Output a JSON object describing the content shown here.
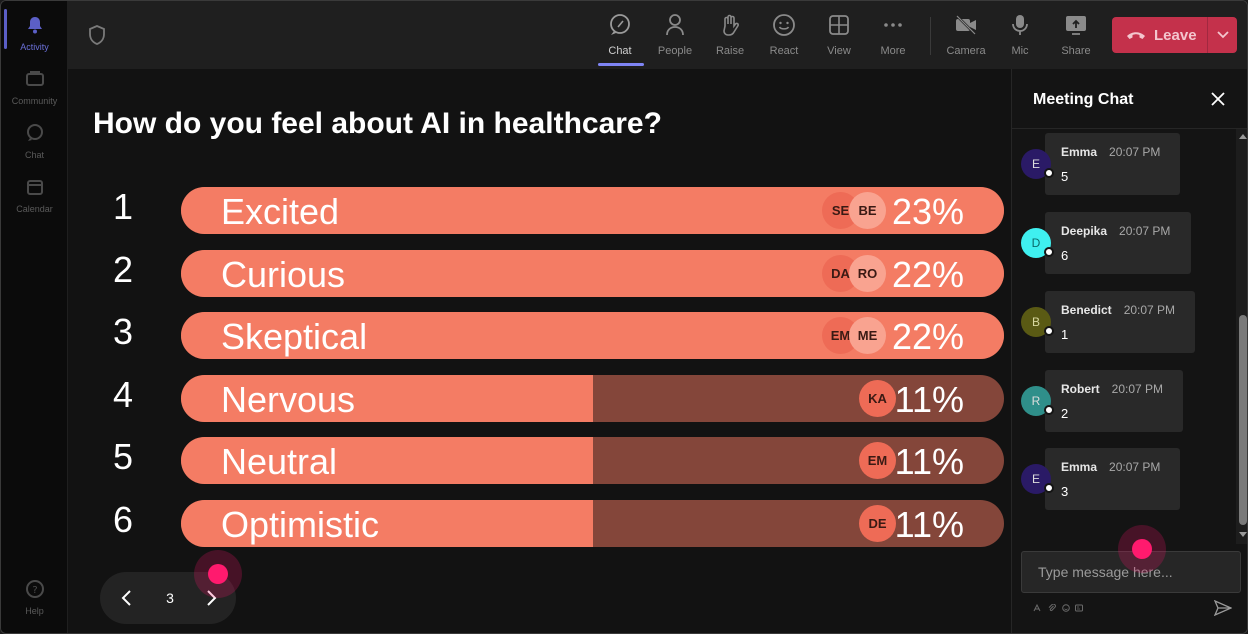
{
  "rail": {
    "items": [
      {
        "label": "Activity",
        "icon": "bell-icon",
        "active": true
      },
      {
        "label": "Community",
        "icon": "community-icon"
      },
      {
        "label": "Chat",
        "icon": "chat-icon"
      },
      {
        "label": "Calendar",
        "icon": "calendar-icon"
      }
    ],
    "help_label": "Help"
  },
  "toolbar": {
    "chat_label": "Chat",
    "people_label": "People",
    "raise_label": "Raise",
    "react_label": "React",
    "view_label": "View",
    "more_label": "More",
    "camera_label": "Camera",
    "mic_label": "Mic",
    "share_label": "Share",
    "leave_label": "Leave",
    "accent": "#7f85f5",
    "leave_color": "#c4314b"
  },
  "poll": {
    "question": "How do you feel about AI in healthcare?",
    "options": [
      {
        "number": "1",
        "label": "Excited",
        "percent": "23%",
        "fill": 1.0,
        "avatars": [
          "SE",
          "BE"
        ]
      },
      {
        "number": "2",
        "label": "Curious",
        "percent": "22%",
        "fill": 1.0,
        "avatars": [
          "DA",
          "RO"
        ]
      },
      {
        "number": "3",
        "label": "Skeptical",
        "percent": "22%",
        "fill": 1.0,
        "avatars": [
          "EM",
          "ME"
        ]
      },
      {
        "number": "4",
        "label": "Nervous",
        "percent": "11%",
        "fill": 0.5,
        "avatars": [
          "KA"
        ]
      },
      {
        "number": "5",
        "label": "Neutral",
        "percent": "11%",
        "fill": 0.5,
        "avatars": [
          "EM"
        ]
      },
      {
        "number": "6",
        "label": "Optimistic",
        "percent": "11%",
        "fill": 0.5,
        "avatars": [
          "DE"
        ]
      }
    ],
    "bar_color": "#f47c64",
    "track_color": "#84463a"
  },
  "pager": {
    "page": "3"
  },
  "chat": {
    "title": "Meeting Chat",
    "messages": [
      {
        "initial": "E",
        "name": "Emma",
        "time": "20:07 PM",
        "text": "5",
        "avatar_color": "#2a1a66"
      },
      {
        "initial": "D",
        "name": "Deepika",
        "time": "20:07 PM",
        "text": "6",
        "avatar_color": "#3ff0f0"
      },
      {
        "initial": "B",
        "name": "Benedict",
        "time": "20:07 PM",
        "text": "1",
        "avatar_color": "#5a5a14"
      },
      {
        "initial": "R",
        "name": "Robert",
        "time": "20:07 PM",
        "text": "2",
        "avatar_color": "#2f8f8a"
      },
      {
        "initial": "E",
        "name": "Emma",
        "time": "20:07 PM",
        "text": "3",
        "avatar_color": "#2a1a66"
      }
    ],
    "input_placeholder": "Type message here..."
  }
}
